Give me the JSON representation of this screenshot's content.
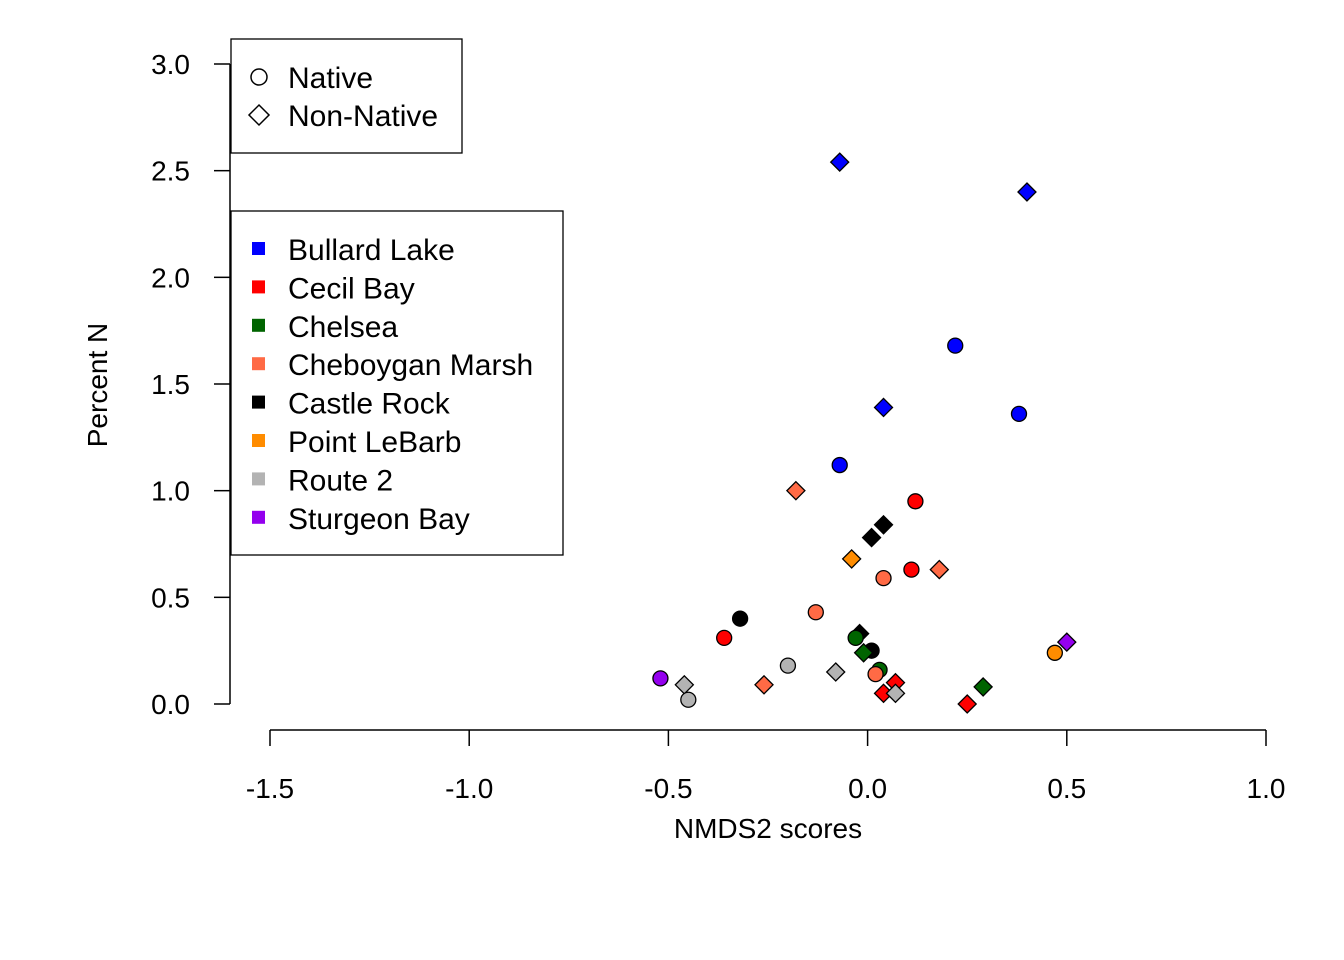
{
  "chart_data": {
    "type": "scatter",
    "title": "",
    "xlabel": "NMDS2 scores",
    "ylabel": "Percent N",
    "xlim": [
      -1.5,
      1.0
    ],
    "ylim": [
      0.0,
      3.0
    ],
    "x_ticks": [
      "-1.5",
      "-1.0",
      "-0.5",
      "0.0",
      "0.5",
      "1.0"
    ],
    "y_ticks": [
      "0.0",
      "0.5",
      "1.0",
      "1.5",
      "2.0",
      "2.5",
      "3.0"
    ],
    "grid": false,
    "shape_legend": {
      "placement": "top-left",
      "items": [
        {
          "label": "Native",
          "shape": "circle"
        },
        {
          "label": "Non-Native",
          "shape": "diamond"
        }
      ]
    },
    "site_legend": {
      "placement": "left",
      "items": [
        {
          "label": "Bullard Lake",
          "color": "#0000ff"
        },
        {
          "label": "Cecil Bay",
          "color": "#ff0000"
        },
        {
          "label": "Chelsea",
          "color": "#006400"
        },
        {
          "label": "Cheboygan Marsh",
          "color": "#ff6a45"
        },
        {
          "label": "Castle Rock",
          "color": "#000000"
        },
        {
          "label": "Point LeBarb",
          "color": "#ff8c00"
        },
        {
          "label": "Route 2",
          "color": "#b3b3b3"
        },
        {
          "label": "Sturgeon Bay",
          "color": "#9400ee"
        }
      ]
    },
    "points": [
      {
        "site": "Bullard Lake",
        "status": "Non-Native",
        "x": -0.07,
        "y": 2.54
      },
      {
        "site": "Bullard Lake",
        "status": "Non-Native",
        "x": 0.4,
        "y": 2.4
      },
      {
        "site": "Bullard Lake",
        "status": "Native",
        "x": 0.22,
        "y": 1.68
      },
      {
        "site": "Bullard Lake",
        "status": "Native",
        "x": 0.38,
        "y": 1.36
      },
      {
        "site": "Bullard Lake",
        "status": "Non-Native",
        "x": 0.04,
        "y": 1.39
      },
      {
        "site": "Bullard Lake",
        "status": "Native",
        "x": -0.07,
        "y": 1.12
      },
      {
        "site": "Cheboygan Marsh",
        "status": "Non-Native",
        "x": -0.18,
        "y": 1.0
      },
      {
        "site": "Cecil Bay",
        "status": "Native",
        "x": 0.12,
        "y": 0.95
      },
      {
        "site": "Castle Rock",
        "status": "Non-Native",
        "x": 0.04,
        "y": 0.84
      },
      {
        "site": "Castle Rock",
        "status": "Non-Native",
        "x": 0.01,
        "y": 0.78
      },
      {
        "site": "Point LeBarb",
        "status": "Non-Native",
        "x": -0.04,
        "y": 0.68
      },
      {
        "site": "Cecil Bay",
        "status": "Native",
        "x": 0.11,
        "y": 0.63
      },
      {
        "site": "Cheboygan Marsh",
        "status": "Non-Native",
        "x": 0.18,
        "y": 0.63
      },
      {
        "site": "Cheboygan Marsh",
        "status": "Native",
        "x": 0.04,
        "y": 0.59
      },
      {
        "site": "Cheboygan Marsh",
        "status": "Native",
        "x": -0.13,
        "y": 0.43
      },
      {
        "site": "Castle Rock",
        "status": "Native",
        "x": -0.32,
        "y": 0.4
      },
      {
        "site": "Castle Rock",
        "status": "Non-Native",
        "x": -0.02,
        "y": 0.33
      },
      {
        "site": "Chelsea",
        "status": "Native",
        "x": -0.03,
        "y": 0.31
      },
      {
        "site": "Cecil Bay",
        "status": "Native",
        "x": -0.36,
        "y": 0.31
      },
      {
        "site": "Sturgeon Bay",
        "status": "Non-Native",
        "x": 0.5,
        "y": 0.29
      },
      {
        "site": "Castle Rock",
        "status": "Native",
        "x": 0.01,
        "y": 0.25
      },
      {
        "site": "Point LeBarb",
        "status": "Native",
        "x": 0.47,
        "y": 0.24
      },
      {
        "site": "Chelsea",
        "status": "Non-Native",
        "x": -0.01,
        "y": 0.24
      },
      {
        "site": "Route 2",
        "status": "Native",
        "x": -0.2,
        "y": 0.18
      },
      {
        "site": "Chelsea",
        "status": "Native",
        "x": 0.03,
        "y": 0.16
      },
      {
        "site": "Route 2",
        "status": "Non-Native",
        "x": -0.08,
        "y": 0.15
      },
      {
        "site": "Cheboygan Marsh",
        "status": "Native",
        "x": 0.02,
        "y": 0.14
      },
      {
        "site": "Sturgeon Bay",
        "status": "Native",
        "x": -0.52,
        "y": 0.12
      },
      {
        "site": "Cecil Bay",
        "status": "Non-Native",
        "x": 0.07,
        "y": 0.1
      },
      {
        "site": "Route 2",
        "status": "Non-Native",
        "x": -0.46,
        "y": 0.09
      },
      {
        "site": "Cheboygan Marsh",
        "status": "Non-Native",
        "x": -0.26,
        "y": 0.09
      },
      {
        "site": "Chelsea",
        "status": "Non-Native",
        "x": 0.29,
        "y": 0.08
      },
      {
        "site": "Cecil Bay",
        "status": "Non-Native",
        "x": 0.04,
        "y": 0.05
      },
      {
        "site": "Route 2",
        "status": "Non-Native",
        "x": 0.07,
        "y": 0.05
      },
      {
        "site": "Route 2",
        "status": "Native",
        "x": -0.45,
        "y": 0.02
      },
      {
        "site": "Cecil Bay",
        "status": "Non-Native",
        "x": 0.25,
        "y": 0.0
      }
    ]
  }
}
